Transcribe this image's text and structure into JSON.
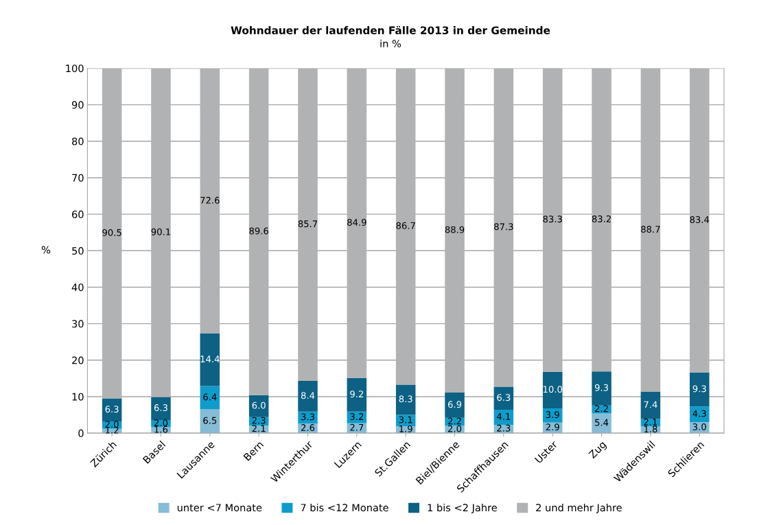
{
  "chart_data": {
    "type": "bar",
    "title": "Wohndauer der laufenden Fälle 2013 in der Gemeinde",
    "subtitle": "in %",
    "ylabel": "%",
    "categories": [
      "Zürich",
      "Basel",
      "Lausanne",
      "Bern",
      "Winterthur",
      "Luzern",
      "St.Gallen",
      "Biel/Bienne",
      "Schaffhausen",
      "Uster",
      "Zug",
      "Wädenswil",
      "Schlieren"
    ],
    "stacked": true,
    "grid": "y",
    "legend": "bottom",
    "ylim": [
      0,
      100
    ],
    "yticks": [
      0,
      10,
      20,
      30,
      40,
      50,
      60,
      70,
      80,
      90,
      100
    ],
    "series": [
      {
        "name": "unter <7 Monate",
        "color": "#86bcd6",
        "values": [
          1.2,
          1.6,
          6.5,
          2.1,
          2.6,
          2.7,
          1.9,
          2.0,
          2.3,
          2.9,
          5.4,
          1.8,
          3.0
        ],
        "value_labels": [
          "1.2",
          "1.6",
          "6.5",
          "2.1",
          "2.6",
          "2.7",
          "1.9",
          "2.0",
          "2.3",
          "2.9",
          "5.4",
          "1.8",
          "3.0"
        ]
      },
      {
        "name": "7 bis <12 Monate",
        "color": "#0f9ccb",
        "values": [
          2.0,
          2.0,
          6.4,
          2.3,
          3.3,
          3.2,
          3.1,
          2.2,
          4.1,
          3.9,
          2.2,
          2.1,
          4.3
        ],
        "value_labels": [
          "2.0",
          "2.0",
          "6.4",
          "2.3",
          "3.3",
          "3.2",
          "3.1",
          "2.2",
          "4.1",
          "3.9",
          "2.2",
          "2.1",
          "4.3"
        ]
      },
      {
        "name": "1 bis <2 Jahre",
        "color": "#0c6184",
        "values": [
          6.3,
          6.3,
          14.4,
          6.0,
          8.4,
          9.2,
          8.3,
          6.9,
          6.3,
          10.0,
          9.3,
          7.4,
          9.3
        ],
        "value_labels": [
          "6.3",
          "6.3",
          "14.4",
          "6.0",
          "8.4",
          "9.2",
          "8.3",
          "6.9",
          "6.3",
          "10.0",
          "9.3",
          "7.4",
          "9.3"
        ]
      },
      {
        "name": "2 und mehr Jahre",
        "color": "#b1b2b4",
        "values": [
          90.5,
          90.1,
          72.6,
          89.6,
          85.7,
          84.9,
          86.7,
          88.9,
          87.3,
          83.3,
          83.2,
          88.7,
          83.4
        ],
        "value_labels": [
          "90.5",
          "90.1",
          "72.6",
          "89.6",
          "85.7",
          "84.9",
          "86.7",
          "88.9",
          "87.3",
          "83.3",
          "83.2",
          "88.7",
          "83.4"
        ]
      }
    ]
  }
}
